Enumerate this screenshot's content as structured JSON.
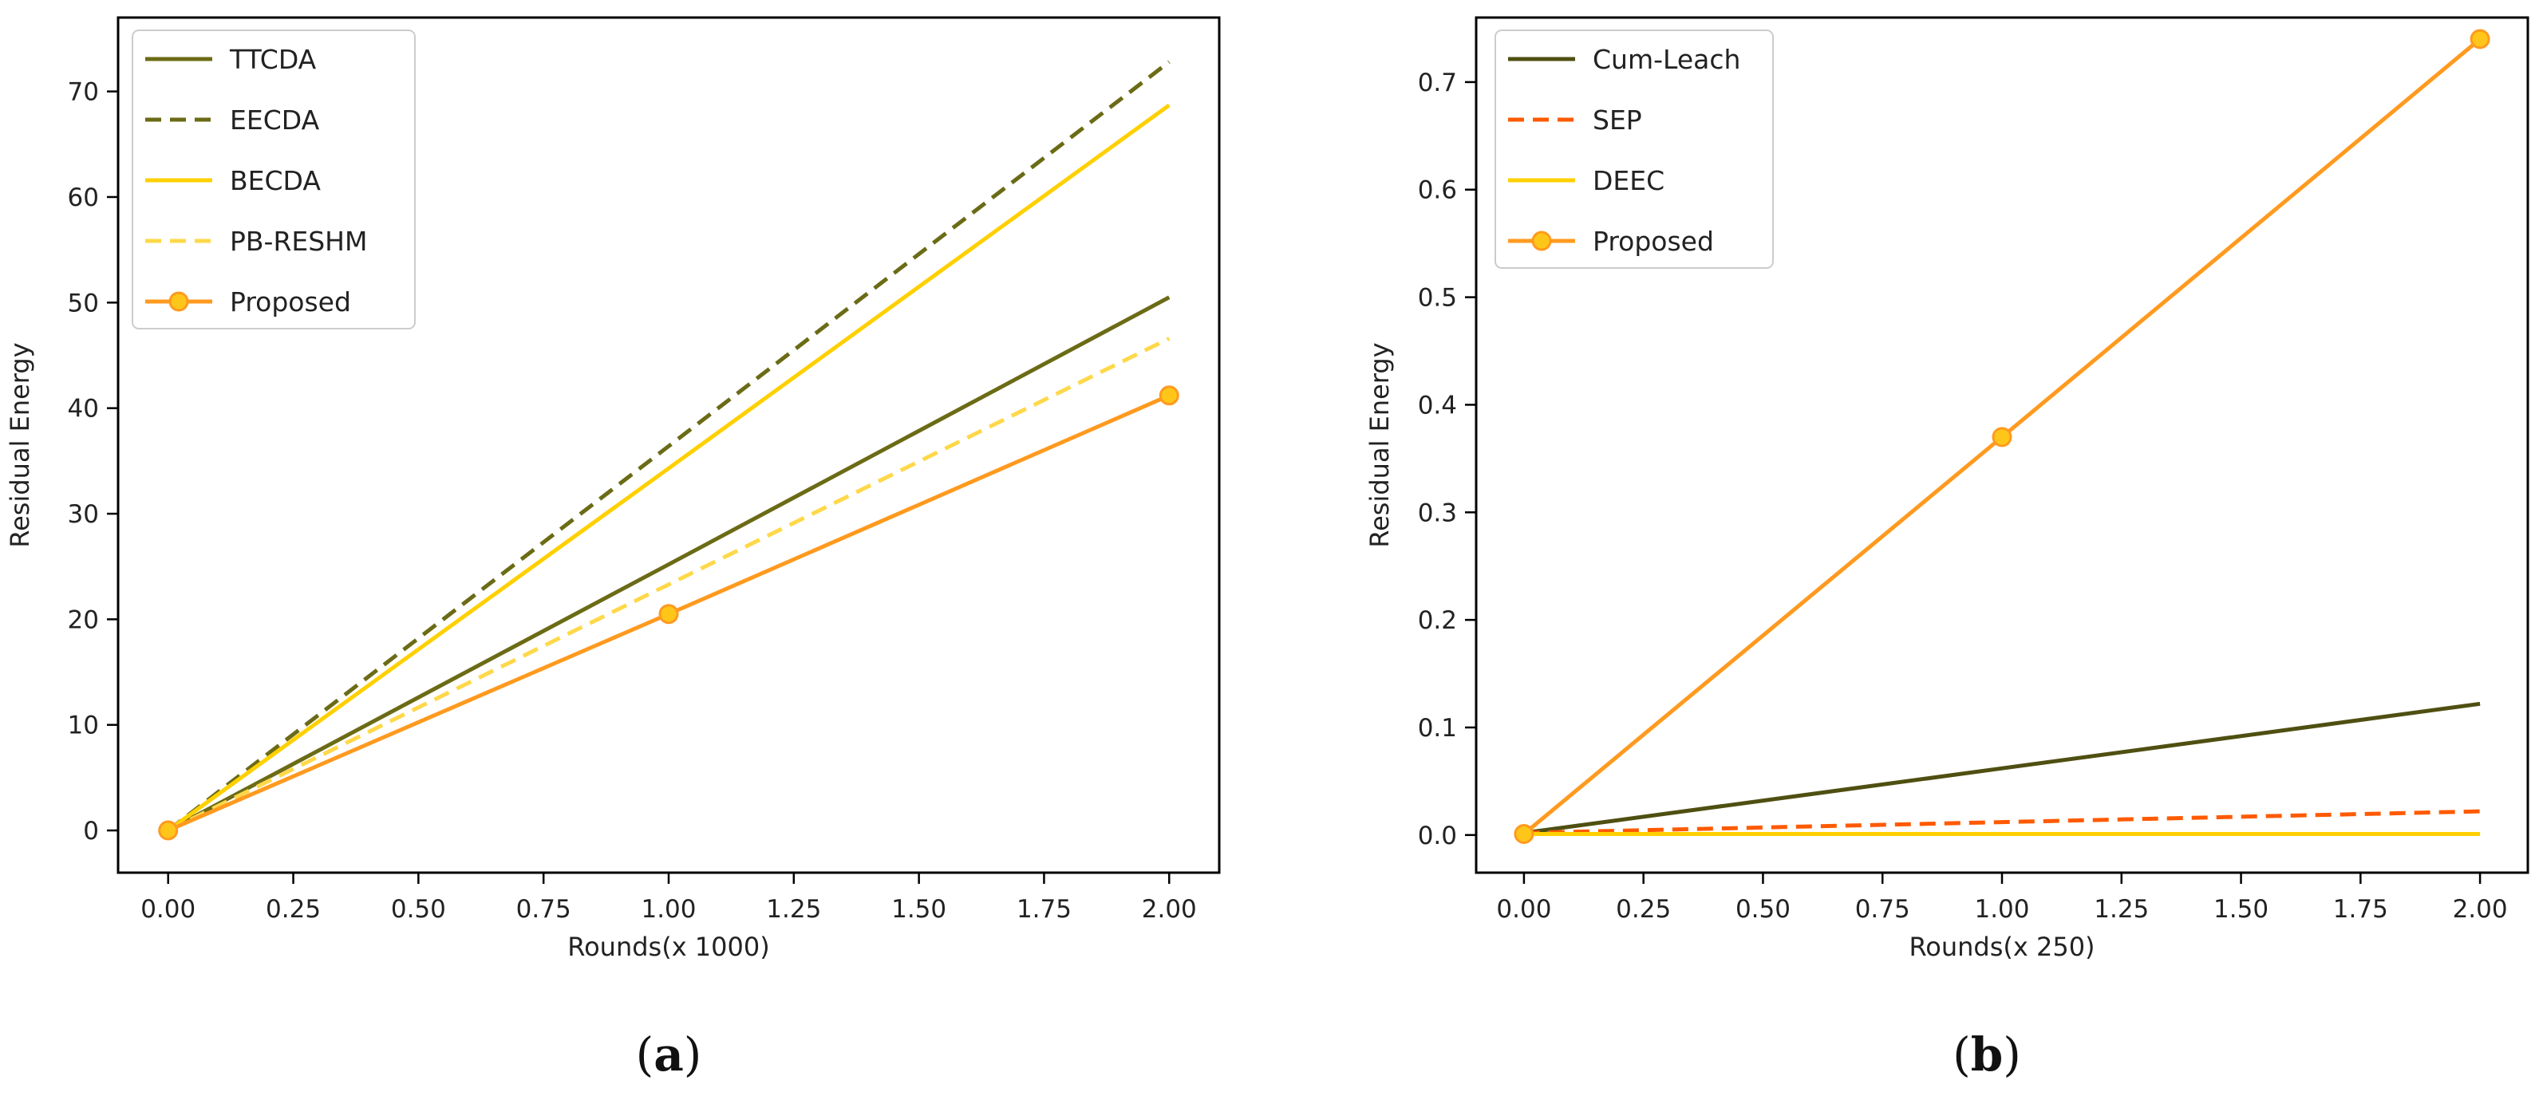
{
  "chart_data": [
    {
      "type": "line",
      "caption_letter": "a",
      "xlabel": "Rounds(x 1000)",
      "ylabel": "Residual Energy",
      "x": [
        0,
        1,
        2
      ],
      "xlim": [
        -0.1,
        2.1
      ],
      "ylim": [
        -4,
        77
      ],
      "xticks": [
        "0.00",
        "0.25",
        "0.50",
        "0.75",
        "1.00",
        "1.25",
        "1.50",
        "1.75",
        "2.00"
      ],
      "xtick_values": [
        0,
        0.25,
        0.5,
        0.75,
        1.0,
        1.25,
        1.5,
        1.75,
        2.0
      ],
      "yticks": [
        "0",
        "10",
        "20",
        "30",
        "40",
        "50",
        "60",
        "70"
      ],
      "ytick_values": [
        0,
        10,
        20,
        30,
        40,
        50,
        60,
        70
      ],
      "legend_position": "upper-left",
      "series": [
        {
          "name": "TTCDA",
          "values": [
            0,
            25.2,
            50.5
          ],
          "color": "#6b6b16",
          "style": "solid",
          "marker": false
        },
        {
          "name": "EECDA",
          "values": [
            0,
            36.4,
            72.8
          ],
          "color": "#6b6b16",
          "style": "dashed",
          "marker": false
        },
        {
          "name": "BECDA",
          "values": [
            0,
            34.3,
            68.7
          ],
          "color": "#ffd000",
          "style": "solid",
          "marker": false
        },
        {
          "name": "PB-RESHM",
          "values": [
            0,
            23.3,
            46.6
          ],
          "color": "#ffd84a",
          "style": "dashed",
          "marker": false
        },
        {
          "name": "Proposed",
          "values": [
            0,
            20.5,
            41.2
          ],
          "color": "#ff9a1f",
          "style": "solid",
          "marker": true
        }
      ]
    },
    {
      "type": "line",
      "caption_letter": "b",
      "xlabel": "Rounds(x 250)",
      "ylabel": "Residual Energy",
      "x": [
        0,
        1,
        2
      ],
      "xlim": [
        -0.1,
        2.1
      ],
      "ylim": [
        -0.035,
        0.76
      ],
      "xticks": [
        "0.00",
        "0.25",
        "0.50",
        "0.75",
        "1.00",
        "1.25",
        "1.50",
        "1.75",
        "2.00"
      ],
      "xtick_values": [
        0,
        0.25,
        0.5,
        0.75,
        1.0,
        1.25,
        1.5,
        1.75,
        2.0
      ],
      "yticks": [
        "0.0",
        "0.1",
        "0.2",
        "0.3",
        "0.4",
        "0.5",
        "0.6",
        "0.7"
      ],
      "ytick_values": [
        0,
        0.1,
        0.2,
        0.3,
        0.4,
        0.5,
        0.6,
        0.7
      ],
      "legend_position": "upper-left",
      "series": [
        {
          "name": "Cum-Leach",
          "values": [
            0.002,
            0.062,
            0.122
          ],
          "color": "#4f4f12",
          "style": "solid",
          "marker": false
        },
        {
          "name": "SEP",
          "values": [
            0.002,
            0.012,
            0.022
          ],
          "color": "#ff5a00",
          "style": "dashed",
          "marker": false
        },
        {
          "name": "DEEC",
          "values": [
            0.001,
            0.001,
            0.001
          ],
          "color": "#ffd000",
          "style": "solid",
          "marker": false
        },
        {
          "name": "Proposed",
          "values": [
            0.001,
            0.37,
            0.74
          ],
          "color": "#ff9a1f",
          "style": "solid",
          "marker": true
        }
      ]
    }
  ],
  "marker_fill": "#ffc61a"
}
